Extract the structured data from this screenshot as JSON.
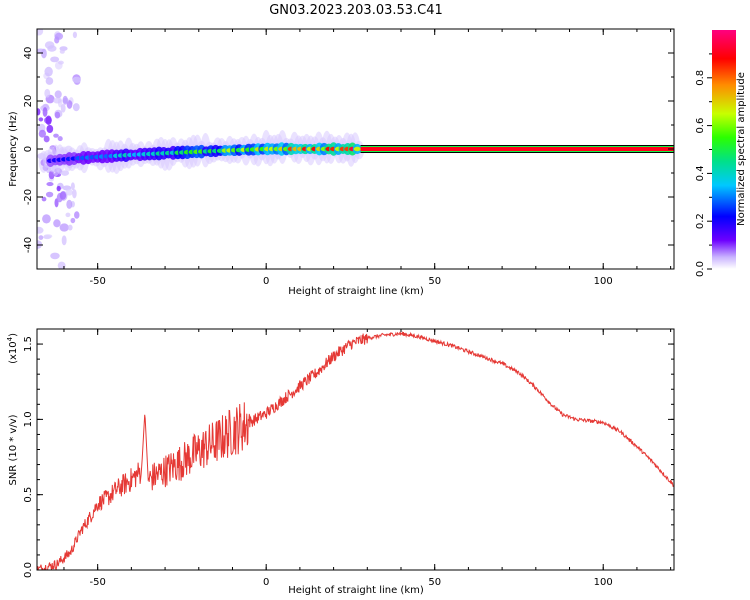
{
  "title": "GN03.2023.203.03.53.C41",
  "colors": {
    "snr_line": "#e53935",
    "axis": "#000000"
  },
  "chart_data": [
    {
      "type": "heatmap",
      "xlabel": "Height of straight line (km)",
      "ylabel": "Frequency (Hz)",
      "xlim": [
        -68,
        121
      ],
      "ylim": [
        -50,
        50
      ],
      "xticks": [
        -50,
        0,
        50,
        100
      ],
      "yticks": [
        -40,
        -20,
        0,
        20,
        40
      ],
      "colorbar": {
        "label": "Normalized spectral amplitude",
        "range": [
          0,
          1
        ],
        "ticks": [
          "0.0",
          "0.2",
          "0.4",
          "0.6",
          "0.8"
        ],
        "colormap": [
          "#ffffff",
          "#c9b3ff",
          "#6d00ff",
          "#0000ff",
          "#00c8ff",
          "#00e08a",
          "#2bff00",
          "#c8ff00",
          "#ff8c00",
          "#ff0000",
          "#ff007f"
        ]
      },
      "ridge": {
        "x_start": -68,
        "x_end": 121,
        "freq_start": -6,
        "freq_end": 0,
        "saturated_from_x": 28
      }
    },
    {
      "type": "line",
      "xlabel": "Height of straight line (km)",
      "ylabel": "SNR (10 * v/v)",
      "y_multiplier": "(x10",
      "y_multiplier_exp": "4",
      "xlim": [
        -68,
        121
      ],
      "ylim": [
        0,
        1.6
      ],
      "xticks": [
        -50,
        0,
        50,
        100
      ],
      "yticks": [
        "0.0",
        "0.5",
        "1.0",
        "1.5"
      ],
      "series": [
        {
          "x": [
            -68,
            -62,
            -58,
            -55,
            -52,
            -50,
            -47,
            -44,
            -40,
            -37,
            -36,
            -35,
            -30,
            -25,
            -20,
            -15,
            -10,
            -5,
            0,
            5,
            10,
            15,
            20,
            25,
            30,
            35,
            40,
            45,
            50,
            55,
            60,
            65,
            70,
            75,
            80,
            85,
            88,
            92,
            96,
            100,
            105,
            110,
            115,
            121
          ],
          "values": [
            0.0,
            0.04,
            0.12,
            0.26,
            0.36,
            0.44,
            0.48,
            0.54,
            0.6,
            0.66,
            1.05,
            0.6,
            0.66,
            0.72,
            0.79,
            0.85,
            0.92,
            0.98,
            1.04,
            1.13,
            1.22,
            1.31,
            1.42,
            1.5,
            1.54,
            1.56,
            1.57,
            1.55,
            1.52,
            1.49,
            1.45,
            1.41,
            1.37,
            1.31,
            1.21,
            1.09,
            1.03,
            1.0,
            0.99,
            0.98,
            0.92,
            0.82,
            0.71,
            0.56
          ]
        }
      ]
    }
  ]
}
